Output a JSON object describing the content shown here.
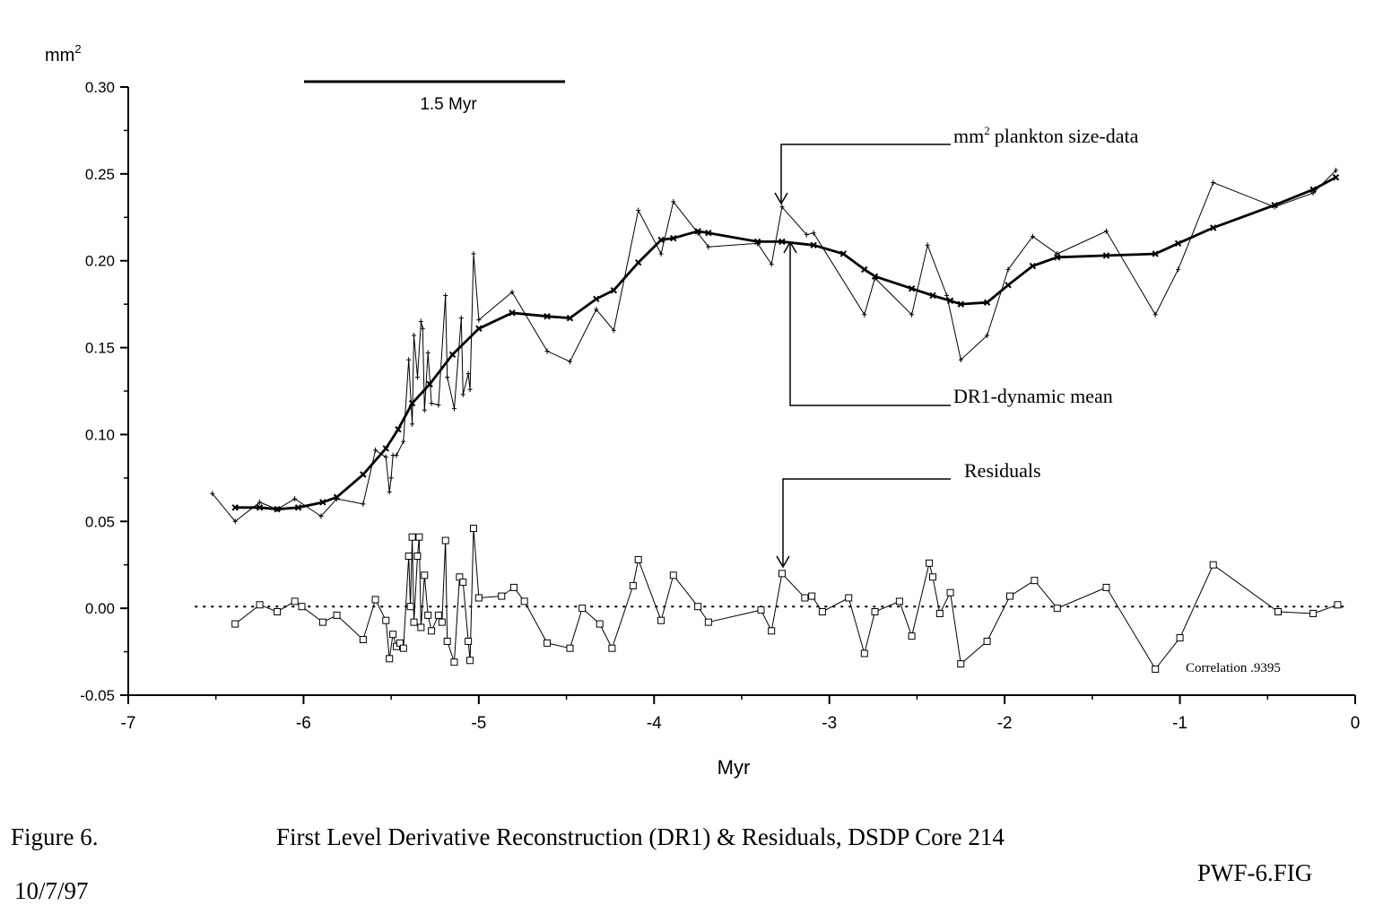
{
  "chart_data": {
    "type": "line",
    "title": "First Level Derivative Reconstruction (DR1) & Residuals, DSDP Core 214",
    "figure_label": "Figure 6.",
    "date": "10/7/97",
    "file_label": "PWF-6.FIG",
    "xlabel": "Myr",
    "ylabel": "mm",
    "ylabel_sup": "2",
    "xlim": [
      -7,
      0
    ],
    "ylim": [
      -0.05,
      0.3
    ],
    "x_ticks": [
      -7,
      -6,
      -5,
      -4,
      -3,
      -2,
      -1,
      0
    ],
    "x_tick_labels": [
      "-7",
      "-6",
      "-5",
      "-4",
      "-3",
      "-2",
      "-1",
      "0"
    ],
    "y_ticks": [
      -0.05,
      0,
      0.05,
      0.1,
      0.15,
      0.2,
      0.25,
      0.3
    ],
    "y_tick_labels": [
      "-0.05",
      "0.00",
      "0.05",
      "0.10",
      "0.15",
      "0.20",
      "0.25",
      "0.30"
    ],
    "scale_bar": {
      "label": "1.5 Myr",
      "from": -6.0,
      "to": -4.5,
      "y": 0.303
    },
    "annotations": {
      "size_data": "plankton size-data",
      "size_data_prefix": "mm",
      "size_data_sup": "2",
      "dr1": "DR1-dynamic mean",
      "residuals": "Residuals",
      "correlation": "Correlation .9395"
    },
    "zero_line": {
      "y": 0.001,
      "style": "dotted"
    },
    "series": [
      {
        "name": "mm2 plankton size-data",
        "marker": "plus",
        "points": [
          [
            -6.52,
            0.066
          ],
          [
            -6.39,
            0.05
          ],
          [
            -6.25,
            0.061
          ],
          [
            -6.15,
            0.057
          ],
          [
            -6.05,
            0.063
          ],
          [
            -5.9,
            0.053
          ],
          [
            -5.81,
            0.063
          ],
          [
            -5.66,
            0.06
          ],
          [
            -5.59,
            0.091
          ],
          [
            -5.53,
            0.087
          ],
          [
            -5.51,
            0.067
          ],
          [
            -5.5,
            0.075
          ],
          [
            -5.49,
            0.088
          ],
          [
            -5.47,
            0.088
          ],
          [
            -5.43,
            0.096
          ],
          [
            -5.4,
            0.143
          ],
          [
            -5.38,
            0.106
          ],
          [
            -5.37,
            0.157
          ],
          [
            -5.35,
            0.133
          ],
          [
            -5.33,
            0.165
          ],
          [
            -5.32,
            0.161
          ],
          [
            -5.31,
            0.114
          ],
          [
            -5.29,
            0.147
          ],
          [
            -5.27,
            0.118
          ],
          [
            -5.23,
            0.117
          ],
          [
            -5.19,
            0.18
          ],
          [
            -5.18,
            0.133
          ],
          [
            -5.14,
            0.115
          ],
          [
            -5.1,
            0.167
          ],
          [
            -5.09,
            0.123
          ],
          [
            -5.06,
            0.135
          ],
          [
            -5.05,
            0.126
          ],
          [
            -5.03,
            0.204
          ],
          [
            -5.0,
            0.166
          ],
          [
            -4.81,
            0.182
          ],
          [
            -4.61,
            0.148
          ],
          [
            -4.48,
            0.142
          ],
          [
            -4.33,
            0.172
          ],
          [
            -4.23,
            0.16
          ],
          [
            -4.09,
            0.229
          ],
          [
            -3.96,
            0.204
          ],
          [
            -3.89,
            0.234
          ],
          [
            -3.75,
            0.216
          ],
          [
            -3.69,
            0.208
          ],
          [
            -3.41,
            0.21
          ],
          [
            -3.33,
            0.198
          ],
          [
            -3.27,
            0.231
          ],
          [
            -3.13,
            0.215
          ],
          [
            -3.09,
            0.216
          ],
          [
            -2.8,
            0.169
          ],
          [
            -2.74,
            0.19
          ],
          [
            -2.53,
            0.169
          ],
          [
            -2.44,
            0.209
          ],
          [
            -2.33,
            0.18
          ],
          [
            -2.25,
            0.143
          ],
          [
            -2.1,
            0.157
          ],
          [
            -1.98,
            0.195
          ],
          [
            -1.84,
            0.214
          ],
          [
            -1.7,
            0.204
          ],
          [
            -1.42,
            0.217
          ],
          [
            -1.14,
            0.169
          ],
          [
            -1.01,
            0.195
          ],
          [
            -0.81,
            0.245
          ],
          [
            -0.46,
            0.231
          ],
          [
            -0.24,
            0.239
          ],
          [
            -0.11,
            0.252
          ]
        ]
      },
      {
        "name": "DR1-dynamic mean",
        "marker": "x",
        "points": [
          [
            -6.39,
            0.058
          ],
          [
            -6.25,
            0.058
          ],
          [
            -6.15,
            0.057
          ],
          [
            -6.03,
            0.058
          ],
          [
            -5.89,
            0.061
          ],
          [
            -5.81,
            0.064
          ],
          [
            -5.66,
            0.077
          ],
          [
            -5.53,
            0.092
          ],
          [
            -5.46,
            0.103
          ],
          [
            -5.38,
            0.118
          ],
          [
            -5.28,
            0.129
          ],
          [
            -5.15,
            0.146
          ],
          [
            -5.0,
            0.161
          ],
          [
            -4.81,
            0.17
          ],
          [
            -4.61,
            0.168
          ],
          [
            -4.48,
            0.167
          ],
          [
            -4.33,
            0.178
          ],
          [
            -4.23,
            0.183
          ],
          [
            -4.09,
            0.199
          ],
          [
            -3.96,
            0.212
          ],
          [
            -3.89,
            0.213
          ],
          [
            -3.75,
            0.217
          ],
          [
            -3.69,
            0.216
          ],
          [
            -3.41,
            0.211
          ],
          [
            -3.27,
            0.211
          ],
          [
            -3.09,
            0.209
          ],
          [
            -2.92,
            0.204
          ],
          [
            -2.8,
            0.195
          ],
          [
            -2.74,
            0.191
          ],
          [
            -2.53,
            0.184
          ],
          [
            -2.41,
            0.18
          ],
          [
            -2.31,
            0.177
          ],
          [
            -2.25,
            0.175
          ],
          [
            -2.1,
            0.176
          ],
          [
            -1.98,
            0.186
          ],
          [
            -1.84,
            0.197
          ],
          [
            -1.7,
            0.202
          ],
          [
            -1.42,
            0.203
          ],
          [
            -1.14,
            0.204
          ],
          [
            -1.01,
            0.21
          ],
          [
            -0.81,
            0.219
          ],
          [
            -0.46,
            0.232
          ],
          [
            -0.24,
            0.241
          ],
          [
            -0.11,
            0.248
          ]
        ]
      },
      {
        "name": "Residuals",
        "marker": "square",
        "points": [
          [
            -6.39,
            -0.009
          ],
          [
            -6.25,
            0.002
          ],
          [
            -6.15,
            -0.002
          ],
          [
            -6.05,
            0.004
          ],
          [
            -6.01,
            0.001
          ],
          [
            -5.89,
            -0.008
          ],
          [
            -5.81,
            -0.004
          ],
          [
            -5.66,
            -0.018
          ],
          [
            -5.59,
            0.005
          ],
          [
            -5.53,
            -0.007
          ],
          [
            -5.51,
            -0.029
          ],
          [
            -5.49,
            -0.015
          ],
          [
            -5.47,
            -0.022
          ],
          [
            -5.45,
            -0.02
          ],
          [
            -5.43,
            -0.023
          ],
          [
            -5.4,
            0.03
          ],
          [
            -5.39,
            0.001
          ],
          [
            -5.38,
            0.041
          ],
          [
            -5.37,
            -0.008
          ],
          [
            -5.35,
            0.03
          ],
          [
            -5.34,
            0.041
          ],
          [
            -5.33,
            -0.011
          ],
          [
            -5.31,
            0.019
          ],
          [
            -5.29,
            -0.004
          ],
          [
            -5.27,
            -0.013
          ],
          [
            -5.23,
            -0.004
          ],
          [
            -5.21,
            -0.008
          ],
          [
            -5.19,
            0.039
          ],
          [
            -5.18,
            -0.019
          ],
          [
            -5.14,
            -0.031
          ],
          [
            -5.11,
            0.018
          ],
          [
            -5.09,
            0.015
          ],
          [
            -5.06,
            -0.019
          ],
          [
            -5.05,
            -0.03
          ],
          [
            -5.03,
            0.046
          ],
          [
            -5.0,
            0.006
          ],
          [
            -4.87,
            0.007
          ],
          [
            -4.8,
            0.012
          ],
          [
            -4.74,
            0.004
          ],
          [
            -4.61,
            -0.02
          ],
          [
            -4.48,
            -0.023
          ],
          [
            -4.41,
            -0.0
          ],
          [
            -4.31,
            -0.009
          ],
          [
            -4.24,
            -0.023
          ],
          [
            -4.12,
            0.013
          ],
          [
            -4.09,
            0.028
          ],
          [
            -3.96,
            -0.007
          ],
          [
            -3.89,
            0.019
          ],
          [
            -3.75,
            0.001
          ],
          [
            -3.69,
            -0.008
          ],
          [
            -3.39,
            -0.001
          ],
          [
            -3.33,
            -0.013
          ],
          [
            -3.27,
            0.02
          ],
          [
            -3.14,
            0.006
          ],
          [
            -3.1,
            0.007
          ],
          [
            -3.04,
            -0.002
          ],
          [
            -2.89,
            0.006
          ],
          [
            -2.8,
            -0.026
          ],
          [
            -2.74,
            -0.002
          ],
          [
            -2.6,
            0.004
          ],
          [
            -2.53,
            -0.016
          ],
          [
            -2.43,
            0.026
          ],
          [
            -2.41,
            0.018
          ],
          [
            -2.37,
            -0.003
          ],
          [
            -2.31,
            0.009
          ],
          [
            -2.25,
            -0.032
          ],
          [
            -2.1,
            -0.019
          ],
          [
            -1.97,
            0.007
          ],
          [
            -1.83,
            0.016
          ],
          [
            -1.7,
            0.0
          ],
          [
            -1.42,
            0.012
          ],
          [
            -1.14,
            -0.035
          ],
          [
            -1.0,
            -0.017
          ],
          [
            -0.81,
            0.025
          ],
          [
            -0.44,
            -0.002
          ],
          [
            -0.24,
            -0.003
          ],
          [
            -0.1,
            0.002
          ]
        ]
      }
    ]
  }
}
